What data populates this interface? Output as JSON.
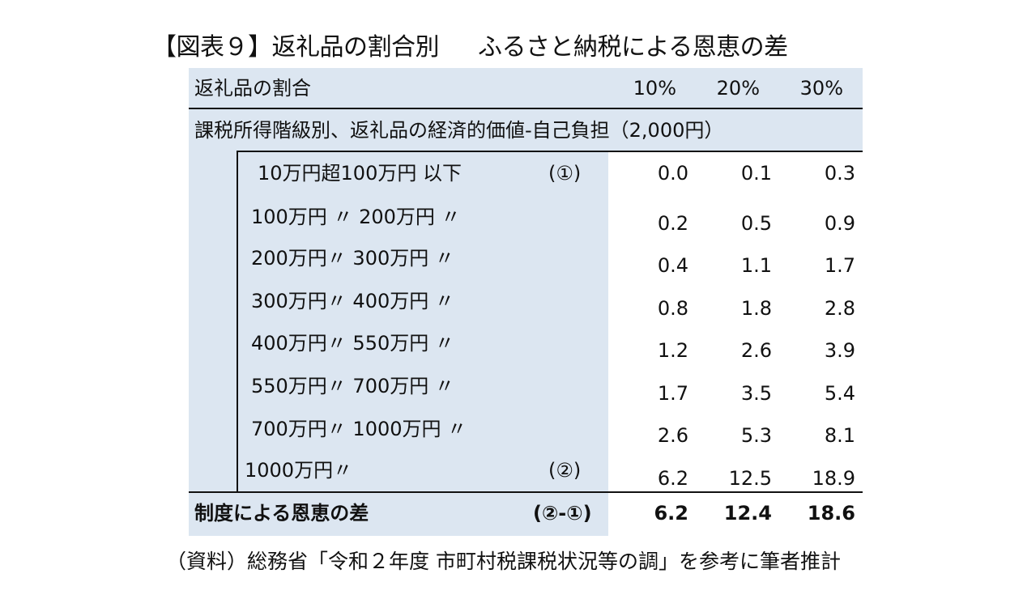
{
  "title": {
    "main": "【図表９】返礼品の割合別",
    "sub": "ふるさと納税による恩恵の差"
  },
  "table": {
    "header": {
      "label": "返礼品の割合",
      "columns": [
        "10%",
        "20%",
        "30%"
      ]
    },
    "subheader": "課税所得階級別、返礼品の経済的価値-自己負担（2,000円）",
    "rows": [
      {
        "label": "10万円超100万円 以下",
        "marker": "(①)",
        "values": [
          "0.0",
          "0.1",
          "0.3"
        ]
      },
      {
        "label": "100万円 〃 200万円 〃",
        "marker": "",
        "values": [
          "0.2",
          "0.5",
          "0.9"
        ]
      },
      {
        "label": "200万円〃 300万円 〃",
        "marker": "",
        "values": [
          "0.4",
          "1.1",
          "1.7"
        ]
      },
      {
        "label": "300万円〃 400万円 〃",
        "marker": "",
        "values": [
          "0.8",
          "1.8",
          "2.8"
        ]
      },
      {
        "label": "400万円〃 550万円 〃",
        "marker": "",
        "values": [
          "1.2",
          "2.6",
          "3.9"
        ]
      },
      {
        "label": "550万円〃 700万円 〃",
        "marker": "",
        "values": [
          "1.7",
          "3.5",
          "5.4"
        ]
      },
      {
        "label": "700万円〃 1000万円 〃",
        "marker": "",
        "values": [
          "2.6",
          "5.3",
          "8.1"
        ]
      },
      {
        "label": "1000万円〃",
        "marker": "(②)",
        "values": [
          "6.2",
          "12.5",
          "18.9"
        ]
      }
    ],
    "total": {
      "label": "制度による恩恵の差",
      "marker": "(②-①)",
      "values": [
        "6.2",
        "12.4",
        "18.6"
      ]
    }
  },
  "source": "（資料）総務省「令和２年度 市町村税課税状況等の調」を参考に筆者推計",
  "colors": {
    "shade": "#dce6f1",
    "line": "#111111"
  }
}
